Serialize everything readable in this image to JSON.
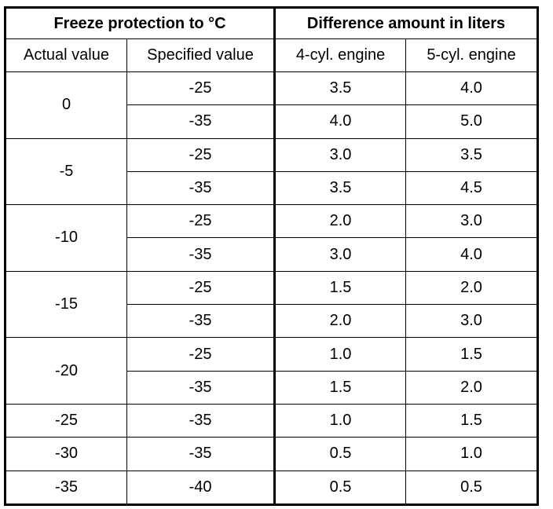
{
  "table": {
    "group_headers": [
      "Freeze protection to °C",
      "Difference amount in liters"
    ],
    "column_headers": [
      "Actual value",
      "Specified value",
      "4-cyl. engine",
      "5-cyl. engine"
    ],
    "groups": [
      {
        "actual": "0",
        "rows": [
          [
            "-25",
            "3.5",
            "4.0"
          ],
          [
            "-35",
            "4.0",
            "5.0"
          ]
        ]
      },
      {
        "actual": "-5",
        "rows": [
          [
            "-25",
            "3.0",
            "3.5"
          ],
          [
            "-35",
            "3.5",
            "4.5"
          ]
        ]
      },
      {
        "actual": "-10",
        "rows": [
          [
            "-25",
            "2.0",
            "3.0"
          ],
          [
            "-35",
            "3.0",
            "4.0"
          ]
        ]
      },
      {
        "actual": "-15",
        "rows": [
          [
            "-25",
            "1.5",
            "2.0"
          ],
          [
            "-35",
            "2.0",
            "3.0"
          ]
        ]
      },
      {
        "actual": "-20",
        "rows": [
          [
            "-25",
            "1.0",
            "1.5"
          ],
          [
            "-35",
            "1.5",
            "2.0"
          ]
        ]
      },
      {
        "actual": "-25",
        "rows": [
          [
            "-35",
            "1.0",
            "1.5"
          ]
        ]
      },
      {
        "actual": "-30",
        "rows": [
          [
            "-35",
            "0.5",
            "1.0"
          ]
        ]
      },
      {
        "actual": "-35",
        "rows": [
          [
            "-40",
            "0.5",
            "0.5"
          ]
        ]
      }
    ]
  }
}
